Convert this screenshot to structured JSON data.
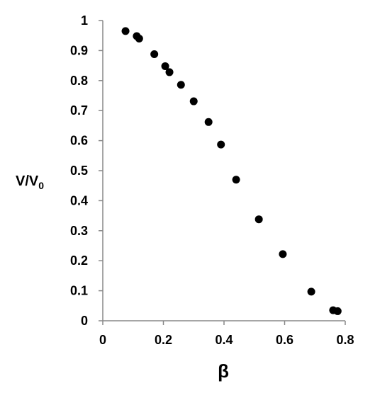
{
  "chart_data": {
    "type": "scatter",
    "title": "",
    "xlabel": "β",
    "ylabel": {
      "main": "V/V",
      "subscript": "0"
    },
    "xlim": [
      0,
      0.8
    ],
    "ylim": [
      0,
      1
    ],
    "x_ticks": [
      0,
      0.2,
      0.4,
      0.6,
      0.8
    ],
    "x_tick_labels": [
      "0",
      "0.2",
      "0.4",
      "0.6",
      "0.8"
    ],
    "y_ticks": [
      0,
      0.1,
      0.2,
      0.3,
      0.4,
      0.5,
      0.6,
      0.7,
      0.8,
      0.9,
      1
    ],
    "y_tick_labels": [
      "0",
      "0.1",
      "0.2",
      "0.3",
      "0.4",
      "0.5",
      "0.6",
      "0.7",
      "0.8",
      "0.9",
      "1"
    ],
    "grid": false,
    "legend": "none",
    "marker_color": "#000000",
    "axis_color": "#888888",
    "series": [
      {
        "points": [
          {
            "x": 0.075,
            "y": 0.965
          },
          {
            "x": 0.112,
            "y": 0.948
          },
          {
            "x": 0.12,
            "y": 0.94
          },
          {
            "x": 0.17,
            "y": 0.888
          },
          {
            "x": 0.206,
            "y": 0.848
          },
          {
            "x": 0.22,
            "y": 0.828
          },
          {
            "x": 0.258,
            "y": 0.786
          },
          {
            "x": 0.3,
            "y": 0.731
          },
          {
            "x": 0.349,
            "y": 0.662
          },
          {
            "x": 0.39,
            "y": 0.587
          },
          {
            "x": 0.44,
            "y": 0.47
          },
          {
            "x": 0.515,
            "y": 0.338
          },
          {
            "x": 0.594,
            "y": 0.222
          },
          {
            "x": 0.688,
            "y": 0.097
          },
          {
            "x": 0.76,
            "y": 0.035
          },
          {
            "x": 0.775,
            "y": 0.032
          }
        ]
      }
    ]
  }
}
